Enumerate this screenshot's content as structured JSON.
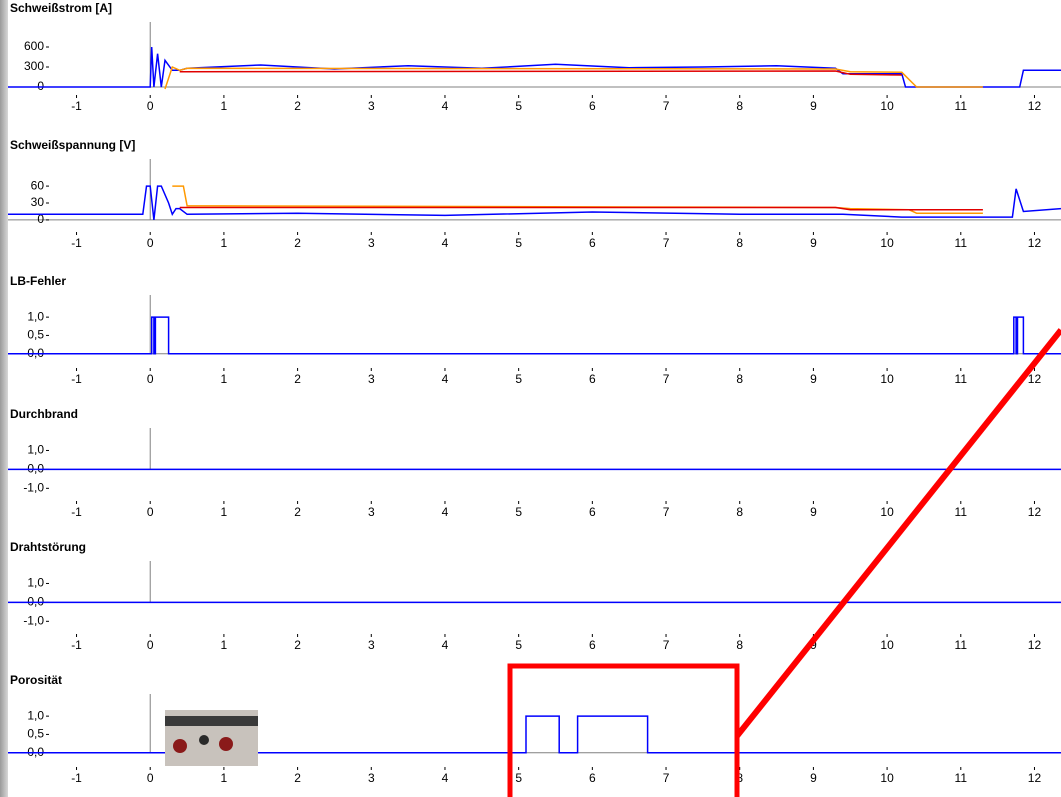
{
  "chart_data": [
    {
      "type": "line",
      "title": "Schweißstrom [A]",
      "xlim": [
        -1.93,
        12.36
      ],
      "xticks": [
        -1,
        0,
        1,
        2,
        3,
        4,
        5,
        6,
        7,
        8,
        9,
        10,
        11,
        12
      ],
      "ylim": [
        -15,
        780
      ],
      "yticks": [
        600,
        300,
        0
      ],
      "series": [
        {
          "color": "#0000ff",
          "x": [
            -1.93,
            0,
            0.02,
            0.05,
            0.1,
            0.15,
            0.2,
            0.3,
            0.4,
            0.5,
            1.5,
            2.5,
            3.5,
            4.5,
            5.5,
            6.5,
            7.5,
            8.5,
            9.3,
            9.4,
            10.2,
            10.25,
            11.3,
            11.8,
            11.85,
            12.36
          ],
          "values": [
            0,
            0,
            600,
            0,
            500,
            0,
            400,
            250,
            250,
            280,
            330,
            270,
            320,
            280,
            340,
            290,
            300,
            320,
            280,
            200,
            200,
            0,
            0,
            0,
            250,
            250
          ]
        },
        {
          "color": "#ff9900",
          "x": [
            0.2,
            0.3,
            0.4,
            0.5,
            9.3,
            9.5,
            10.2,
            10.4,
            11.3
          ],
          "values": [
            -30,
            300,
            250,
            280,
            270,
            230,
            220,
            0,
            0
          ]
        },
        {
          "color": "#e00000",
          "x": [
            0.4,
            9.3,
            9.5,
            10.2
          ],
          "values": [
            230,
            240,
            190,
            180
          ]
        }
      ]
    },
    {
      "type": "line",
      "title": "Schweißspannung [V]",
      "xlim": [
        -1.93,
        12.36
      ],
      "xticks": [
        -1,
        0,
        1,
        2,
        3,
        4,
        5,
        6,
        7,
        8,
        9,
        10,
        11,
        12
      ],
      "ylim": [
        -9,
        85
      ],
      "yticks": [
        60,
        30,
        0
      ],
      "series": [
        {
          "color": "#0000ff",
          "x": [
            -1.93,
            -0.1,
            -0.05,
            0,
            0.05,
            0.1,
            0.15,
            0.25,
            0.3,
            0.35,
            0.4,
            0.5,
            2,
            4,
            6,
            8,
            9.4,
            10.2,
            10.3,
            11.3,
            11.7,
            11.75,
            11.85,
            12.36
          ],
          "values": [
            10,
            10,
            60,
            60,
            0,
            60,
            60,
            30,
            10,
            20,
            20,
            10,
            12,
            8,
            14,
            10,
            10,
            5,
            5,
            5,
            5,
            55,
            15,
            20
          ]
        },
        {
          "color": "#ff9900",
          "x": [
            0.3,
            0.45,
            0.5,
            9.3,
            9.5,
            10.3,
            10.4,
            11.3
          ],
          "values": [
            60,
            60,
            25,
            22,
            20,
            18,
            12,
            12
          ]
        },
        {
          "color": "#e00000",
          "x": [
            0.4,
            9.3,
            9.5,
            11.3
          ],
          "values": [
            22,
            22,
            18,
            18
          ]
        }
      ]
    },
    {
      "type": "line",
      "title": "LB-Fehler",
      "xlim": [
        -1.93,
        12.36
      ],
      "xticks": [
        -1,
        0,
        1,
        2,
        3,
        4,
        5,
        6,
        7,
        8,
        9,
        10,
        11,
        12
      ],
      "ylim": [
        -0.2,
        1.25
      ],
      "yticks": [
        {
          "value": 1,
          "label": "1,0"
        },
        {
          "value": 0.5,
          "label": "0,5"
        },
        {
          "value": 0,
          "label": "0,0"
        }
      ],
      "series": [
        {
          "color": "#0000ff",
          "x": [
            -1.93,
            0.02,
            0.02,
            0.05,
            0.05,
            0.07,
            0.07,
            0.25,
            0.25,
            11.72,
            11.72,
            11.75,
            11.75,
            11.77,
            11.77,
            11.85,
            11.85,
            12.36
          ],
          "values": [
            0,
            0,
            1,
            1,
            0,
            0,
            1,
            1,
            0,
            0,
            1,
            1,
            0,
            0,
            1,
            1,
            0,
            0
          ]
        }
      ]
    },
    {
      "type": "line",
      "title": "Durchbrand",
      "xlim": [
        -1.93,
        12.36
      ],
      "xticks": [
        -1,
        0,
        1,
        2,
        3,
        4,
        5,
        6,
        7,
        8,
        9,
        10,
        11,
        12
      ],
      "ylim": [
        -1.3,
        1.5
      ],
      "yticks": [
        {
          "value": 1,
          "label": "1,0"
        },
        {
          "value": 0,
          "label": "0,0"
        },
        {
          "value": -1,
          "label": "-1,0"
        }
      ],
      "series": [
        {
          "color": "#0000ff",
          "x": [
            -1.93,
            12.36
          ],
          "values": [
            0,
            0
          ]
        }
      ]
    },
    {
      "type": "line",
      "title": "Drahtstörung",
      "xlim": [
        -1.93,
        12.36
      ],
      "xticks": [
        -1,
        0,
        1,
        2,
        3,
        4,
        5,
        6,
        7,
        8,
        9,
        10,
        11,
        12
      ],
      "ylim": [
        -1.3,
        1.5
      ],
      "yticks": [
        {
          "value": 1,
          "label": "1,0"
        },
        {
          "value": 0,
          "label": "0,0"
        },
        {
          "value": -1,
          "label": "-1,0"
        }
      ],
      "series": [
        {
          "color": "#0000ff",
          "x": [
            -1.93,
            12.36
          ],
          "values": [
            0,
            0
          ]
        }
      ]
    },
    {
      "type": "line",
      "title": "Porosität",
      "xlim": [
        -1.93,
        12.36
      ],
      "xticks": [
        -1,
        0,
        1,
        2,
        3,
        4,
        5,
        6,
        7,
        8,
        9,
        10,
        11,
        12
      ],
      "ylim": [
        -0.2,
        1.25
      ],
      "yticks": [
        {
          "value": 1,
          "label": "1,0"
        },
        {
          "value": 0.5,
          "label": "0,5"
        },
        {
          "value": 0,
          "label": "0,0"
        }
      ],
      "series": [
        {
          "color": "#0000ff",
          "x": [
            -1.93,
            5.1,
            5.1,
            5.55,
            5.55,
            5.8,
            5.8,
            6.75,
            6.75,
            12.36
          ],
          "values": [
            0,
            0,
            1,
            1,
            0,
            0,
            1,
            1,
            0,
            0
          ]
        }
      ]
    }
  ]
}
